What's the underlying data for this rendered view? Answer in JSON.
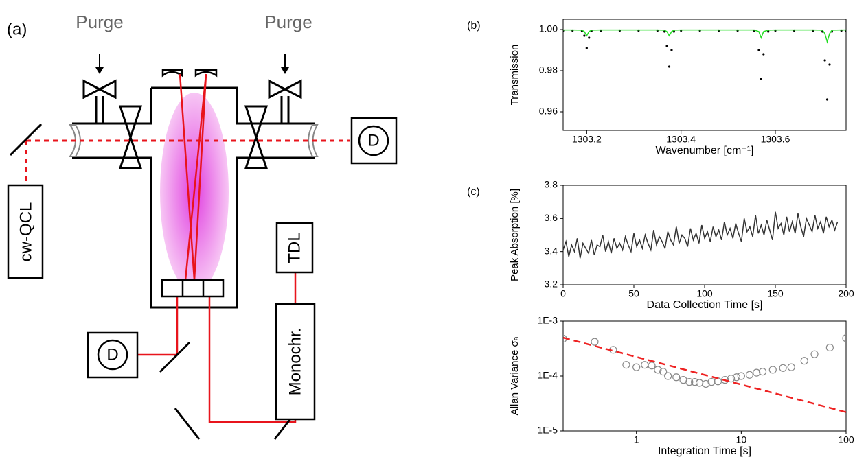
{
  "diagram": {
    "panel_label": "(a)",
    "purge_left": "Purge",
    "purge_right": "Purge",
    "laser": "cw-QCL",
    "detector_right": "D",
    "detector_left": "D",
    "tdl": "TDL",
    "monochromator": "Monochr."
  },
  "chart_data": [
    {
      "type": "line",
      "panel_label": "(b)",
      "y_label": "Transmission",
      "x_label": "Wavenumber [cm⁻¹]",
      "xlim": [
        1303.15,
        1303.75
      ],
      "xticks": [
        1303.2,
        1303.4,
        1303.6
      ],
      "ylim": [
        0.951,
        1.005
      ],
      "yticks": [
        0.96,
        0.98,
        {
          "value": 1,
          "label": "1.00"
        }
      ],
      "x": [
        1303.15,
        1303.17,
        1303.19,
        1303.195,
        1303.2,
        1303.205,
        1303.21,
        1303.23,
        1303.27,
        1303.31,
        1303.35,
        1303.365,
        1303.37,
        1303.375,
        1303.38,
        1303.385,
        1303.4,
        1303.44,
        1303.48,
        1303.52,
        1303.555,
        1303.565,
        1303.57,
        1303.575,
        1303.585,
        1303.6,
        1303.64,
        1303.68,
        1303.7,
        1303.705,
        1303.71,
        1303.715,
        1303.72,
        1303.74,
        1303.75
      ],
      "series": [
        {
          "style": "dots",
          "color": "#000000",
          "values": [
            0.9995,
            0.9995,
            0.9993,
            0.997,
            0.991,
            0.996,
            0.9993,
            0.9995,
            0.9995,
            0.9995,
            0.9995,
            0.999,
            0.992,
            0.982,
            0.99,
            0.999,
            0.9995,
            0.9995,
            0.9995,
            0.9995,
            0.9995,
            0.99,
            0.976,
            0.988,
            0.999,
            0.9995,
            0.9995,
            0.9995,
            0.999,
            0.985,
            0.966,
            0.983,
            0.999,
            0.9995,
            0.9995
          ]
        },
        {
          "style": "line",
          "color": "#22dd22",
          "values": [
            0.9998,
            0.9998,
            0.9997,
            0.999,
            0.997,
            0.999,
            0.9997,
            0.9998,
            0.9998,
            0.9998,
            0.9998,
            0.9997,
            0.999,
            0.997,
            0.999,
            0.9997,
            0.9998,
            0.9998,
            0.9998,
            0.9998,
            0.9998,
            0.999,
            0.996,
            0.999,
            0.9997,
            0.9998,
            0.9998,
            0.9998,
            0.9997,
            0.998,
            0.994,
            0.998,
            0.9997,
            0.9998,
            0.9998
          ]
        }
      ]
    },
    {
      "type": "line",
      "panel_label": "(c)",
      "y_label": "Peak Absorption [%]",
      "x_label": "Data Collection Time [s]",
      "xlim": [
        0,
        200
      ],
      "xticks": [
        0,
        50,
        100,
        150,
        200
      ],
      "ylim": [
        3.2,
        3.8
      ],
      "yticks": [
        3.2,
        3.4,
        3.6,
        3.8
      ],
      "x": [
        0,
        2,
        4,
        6,
        8,
        10,
        12,
        14,
        16,
        18,
        20,
        22,
        24,
        26,
        28,
        30,
        32,
        34,
        36,
        38,
        40,
        42,
        44,
        46,
        48,
        50,
        52,
        54,
        56,
        58,
        60,
        62,
        64,
        66,
        68,
        70,
        72,
        74,
        76,
        78,
        80,
        82,
        84,
        86,
        88,
        90,
        92,
        94,
        96,
        98,
        100,
        102,
        104,
        106,
        108,
        110,
        112,
        114,
        116,
        118,
        120,
        122,
        124,
        126,
        128,
        130,
        132,
        134,
        136,
        138,
        140,
        142,
        144,
        146,
        148,
        150,
        152,
        154,
        156,
        158,
        160,
        162,
        164,
        166,
        168,
        170,
        172,
        174,
        176,
        178,
        180,
        182,
        184,
        186,
        188,
        190,
        192,
        194
      ],
      "series": [
        {
          "style": "line",
          "color": "#333333",
          "values": [
            3.41,
            3.46,
            3.37,
            3.44,
            3.4,
            3.48,
            3.36,
            3.45,
            3.42,
            3.39,
            3.47,
            3.38,
            3.44,
            3.43,
            3.5,
            3.4,
            3.46,
            3.39,
            3.48,
            3.42,
            3.45,
            3.41,
            3.49,
            3.44,
            3.4,
            3.51,
            3.43,
            3.47,
            3.42,
            3.5,
            3.45,
            3.41,
            3.53,
            3.44,
            3.49,
            3.46,
            3.42,
            3.52,
            3.47,
            3.44,
            3.55,
            3.45,
            3.5,
            3.48,
            3.43,
            3.54,
            3.47,
            3.51,
            3.45,
            3.56,
            3.48,
            3.52,
            3.46,
            3.55,
            3.49,
            3.53,
            3.47,
            3.58,
            3.5,
            3.54,
            3.48,
            3.57,
            3.51,
            3.46,
            3.6,
            3.52,
            3.55,
            3.49,
            3.62,
            3.51,
            3.56,
            3.5,
            3.59,
            3.53,
            3.47,
            3.64,
            3.54,
            3.57,
            3.5,
            3.61,
            3.52,
            3.58,
            3.51,
            3.63,
            3.55,
            3.49,
            3.6,
            3.56,
            3.52,
            3.62,
            3.54,
            3.58,
            3.51,
            3.61,
            3.55,
            3.59,
            3.53,
            3.58
          ]
        }
      ]
    },
    {
      "type": "scatter",
      "y_label": "Allan Variance σₐ",
      "x_label": "Integration Time [s]",
      "xscale": "log",
      "yscale": "log",
      "xlim": [
        0.2,
        100
      ],
      "xticks": [
        1,
        10,
        100
      ],
      "ylim": [
        1e-05,
        0.001
      ],
      "yticks": [
        {
          "value": 1e-05,
          "label": "1E-5"
        },
        {
          "value": 0.0001,
          "label": "1E-4"
        },
        {
          "value": 0.001,
          "label": "1E-3"
        }
      ],
      "series": [
        {
          "style": "circles",
          "color": "#888888",
          "x": [
            0.2,
            0.4,
            0.6,
            0.8,
            1.0,
            1.2,
            1.4,
            1.6,
            1.8,
            2.0,
            2.4,
            2.8,
            3.2,
            3.6,
            4.0,
            4.6,
            5.2,
            6,
            7,
            8,
            9,
            10,
            12,
            14,
            16,
            20,
            25,
            30,
            40,
            50,
            70,
            100
          ],
          "values": [
            0.00048,
            0.00042,
            0.0003,
            0.00016,
            0.000145,
            0.00016,
            0.000155,
            0.00013,
            0.00012,
            0.0001,
            9.5e-05,
            8.5e-05,
            7.8e-05,
            7.8e-05,
            7.5e-05,
            7.2e-05,
            7.8e-05,
            8e-05,
            8.5e-05,
            9e-05,
            9.5e-05,
            0.0001,
            0.000105,
            0.000115,
            0.00012,
            0.00013,
            0.00014,
            0.000145,
            0.00019,
            0.00025,
            0.00033,
            0.00049
          ]
        },
        {
          "style": "dashed",
          "color": "#ee2222",
          "x": [
            0.2,
            100
          ],
          "values": [
            0.0005,
            2.2e-05
          ]
        }
      ]
    }
  ]
}
